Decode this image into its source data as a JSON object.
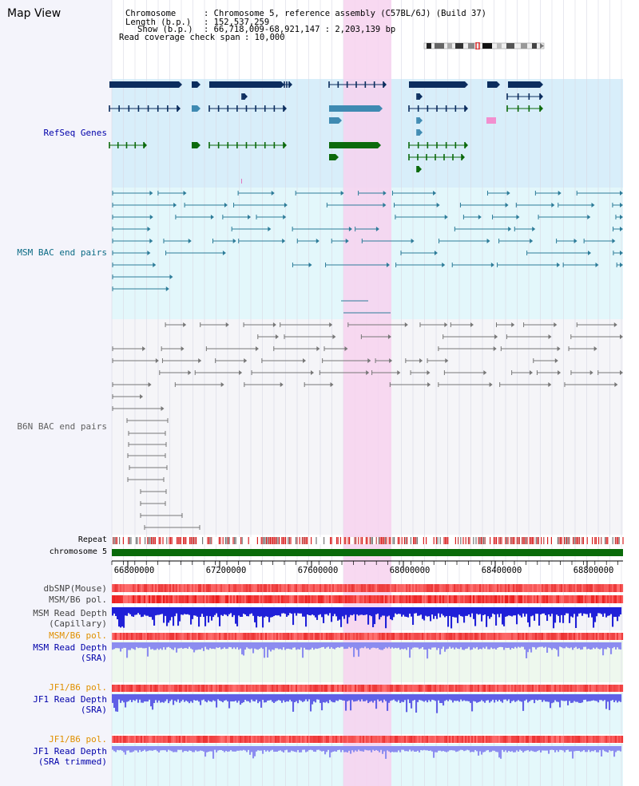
{
  "title": "Map View",
  "info": {
    "chromosome_label": "Chromosome",
    "chromosome_value": ": Chromosome 5, reference assembly (C57BL/6J) (Build 37)",
    "length_label": "Length (b.p.)",
    "length_value": ": 152,537,259",
    "show_label": "Show (b.p.)",
    "show_value": ": 66,718,009-68,921,147 : 2,203,139 bp",
    "coverage_label": "Read coverage check span",
    "coverage_value": ": 10,000"
  },
  "tracks": {
    "refseq": "RefSeq Genes",
    "msm_bac": "MSM BAC end pairs",
    "b6n_bac": "B6N BAC end pairs",
    "repeat": "Repeat",
    "chromosome": "chromosome 5",
    "dbsnp": "dbSNP(Mouse)",
    "msm_b6_pol": "MSM/B6 pol.",
    "msm_depth_cap_1": "MSM Read Depth",
    "msm_depth_cap_2": "(Capillary)",
    "msm_b6_pol_sra": "MSM/B6 pol.",
    "msm_depth_sra_1": "MSM Read Depth",
    "msm_depth_sra_2": "(SRA)",
    "jf1_b6_pol": "JF1/B6 pol.",
    "jf1_depth_sra_1": "JF1 Read Depth",
    "jf1_depth_sra_2": "(SRA)",
    "jf1_b6_pol_trim": "JF1/B6 pol.",
    "jf1_depth_trim_1": "JF1 Read Depth",
    "jf1_depth_trim_2": "(SRA trimmed)"
  },
  "axis_ticks": [
    "66800000",
    "67200000",
    "67600000",
    "68000000",
    "68400000",
    "68800000"
  ],
  "colors": {
    "refseq_bg": "#d8eefa",
    "msm_bg": "#e3f7fb",
    "b6n_bg": "#f5f5f8",
    "highlight": "#f7d2ef",
    "gene_dark": "#0b2d5e",
    "gene_mid": "#3f8ab2",
    "gene_green": "#0c6a0c",
    "msm_line": "#2d7c99",
    "b6n_line": "#777777",
    "chrom_green": "#0a6b0a",
    "depth_blue": "#2a2ad8",
    "pol_red": "#e84040",
    "label_blue": "#0000aa",
    "label_orange": "#e09000",
    "label_teal": "#0b6b85",
    "label_gray": "#606060"
  }
}
